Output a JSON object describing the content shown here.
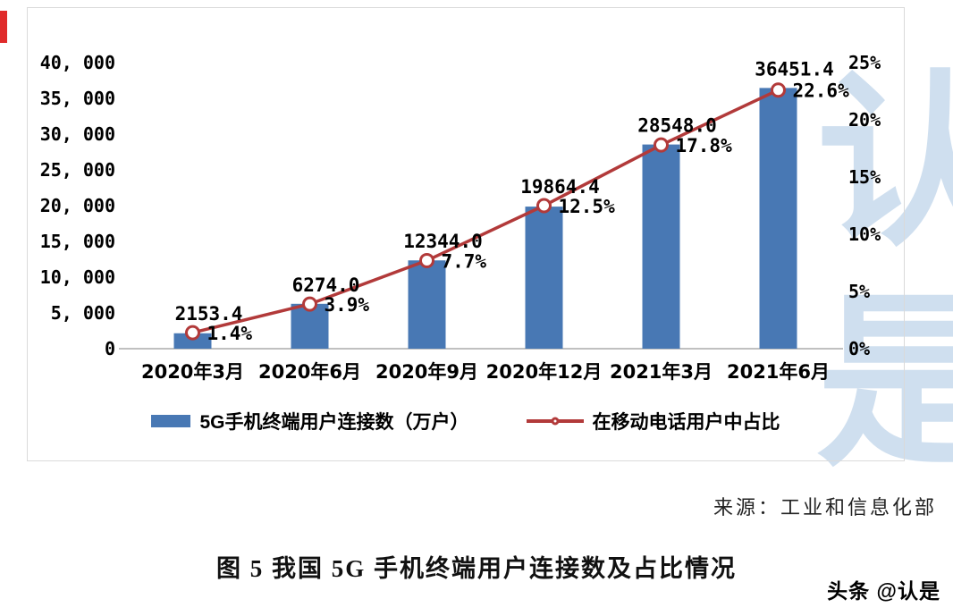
{
  "chart_data": {
    "type": "bar",
    "combo": "bar+line",
    "title": "",
    "categories": [
      "2020年3月",
      "2020年6月",
      "2020年9月",
      "2020年12月",
      "2021年3月",
      "2021年6月"
    ],
    "series": [
      {
        "name": "5G手机终端用户连接数（万户）",
        "type": "bar",
        "axis": "left",
        "color": "#4878b4",
        "values": [
          2153.4,
          6274.0,
          12344.0,
          19864.4,
          28548.0,
          36451.4
        ],
        "labels": [
          "2153.4",
          "6274.0",
          "12344.0",
          "19864.4",
          "28548.0",
          "36451.4"
        ]
      },
      {
        "name": "在移动电话用户中占比",
        "type": "line",
        "axis": "right",
        "color": "#b23a3a",
        "marker": "open-circle",
        "values": [
          1.4,
          3.9,
          7.7,
          12.5,
          17.8,
          22.6
        ],
        "labels": [
          "1.4%",
          "3.9%",
          "7.7%",
          "12.5%",
          "17.8%",
          "22.6%"
        ]
      }
    ],
    "left_axis": {
      "min": 0,
      "max": 40000,
      "step": 5000,
      "tick_labels": [
        "0",
        "5, 000",
        "10, 000",
        "15, 000",
        "20, 000",
        "25, 000",
        "30, 000",
        "35, 000",
        "40, 000"
      ]
    },
    "right_axis": {
      "min": 0,
      "max": 25,
      "step": 5,
      "tick_labels": [
        "0%",
        "5%",
        "10%",
        "15%",
        "20%",
        "25%"
      ]
    },
    "grid": false,
    "legend_position": "bottom"
  },
  "source": "来源：工业和信息化部",
  "caption": "图 5 我国 5G 手机终端用户连接数及占比情况",
  "watermark": {
    "vertical_text": "认是",
    "byline": "头条 @认是"
  }
}
